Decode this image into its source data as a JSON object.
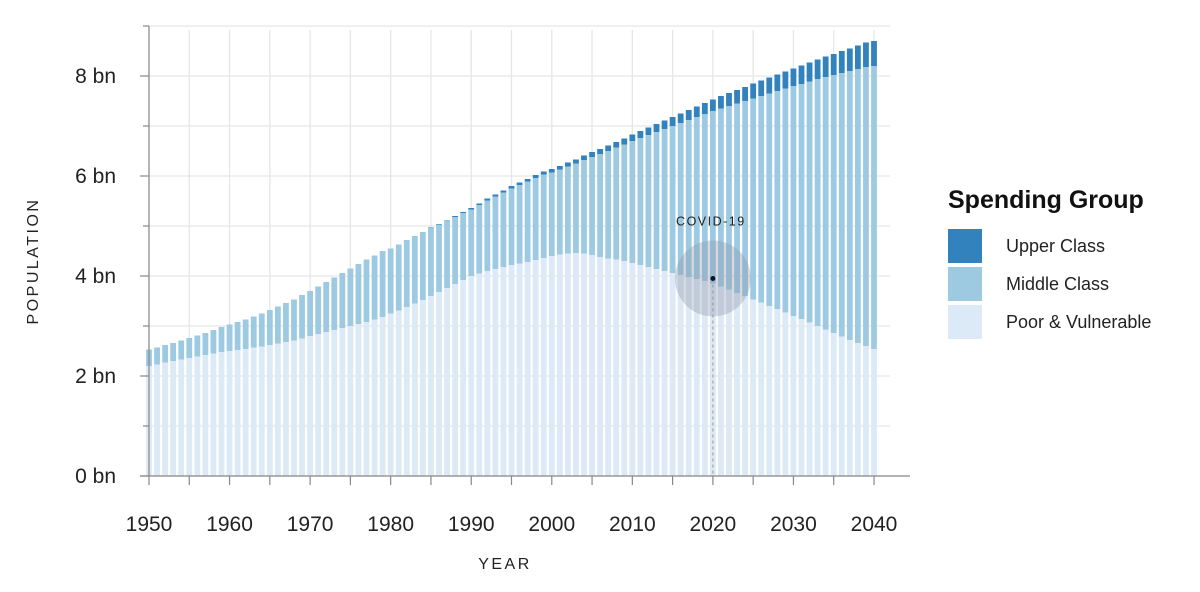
{
  "chart_data": {
    "type": "bar",
    "stacked": true,
    "xlabel": "YEAR",
    "ylabel": "POPULATION",
    "xlim": [
      1950,
      2040
    ],
    "ylim": [
      0,
      9
    ],
    "x_ticks": [
      "1950",
      "1960",
      "1970",
      "1980",
      "1990",
      "2000",
      "2010",
      "2020",
      "2030",
      "2040"
    ],
    "y_ticks": [
      "0 bn",
      "2 bn",
      "4 bn",
      "6 bn",
      "8 bn"
    ],
    "grid": true,
    "legend": {
      "title": "Spending Group",
      "placement": "right",
      "entries": [
        "Upper Class",
        "Middle Class",
        "Poor & Vulnerable"
      ]
    },
    "annotation": {
      "label": "COVID-19",
      "x": 2020,
      "y": 3.95
    },
    "categories": [
      1950,
      1951,
      1952,
      1953,
      1954,
      1955,
      1956,
      1957,
      1958,
      1959,
      1960,
      1961,
      1962,
      1963,
      1964,
      1965,
      1966,
      1967,
      1968,
      1969,
      1970,
      1971,
      1972,
      1973,
      1974,
      1975,
      1976,
      1977,
      1978,
      1979,
      1980,
      1981,
      1982,
      1983,
      1984,
      1985,
      1986,
      1987,
      1988,
      1989,
      1990,
      1991,
      1992,
      1993,
      1994,
      1995,
      1996,
      1997,
      1998,
      1999,
      2000,
      2001,
      2002,
      2003,
      2004,
      2005,
      2006,
      2007,
      2008,
      2009,
      2010,
      2011,
      2012,
      2013,
      2014,
      2015,
      2016,
      2017,
      2018,
      2019,
      2020,
      2021,
      2022,
      2023,
      2024,
      2025,
      2026,
      2027,
      2028,
      2029,
      2030,
      2031,
      2032,
      2033,
      2034,
      2035,
      2036,
      2037,
      2038,
      2039,
      2040
    ],
    "series": [
      {
        "name": "Poor & Vulnerable",
        "color": "#dce9f6",
        "values": [
          2.2,
          2.23,
          2.27,
          2.3,
          2.33,
          2.36,
          2.39,
          2.42,
          2.45,
          2.48,
          2.5,
          2.52,
          2.54,
          2.57,
          2.59,
          2.62,
          2.65,
          2.68,
          2.71,
          2.75,
          2.8,
          2.84,
          2.88,
          2.92,
          2.96,
          3.0,
          3.04,
          3.08,
          3.13,
          3.18,
          3.25,
          3.31,
          3.38,
          3.45,
          3.52,
          3.6,
          3.68,
          3.76,
          3.84,
          3.92,
          4.0,
          4.05,
          4.1,
          4.14,
          4.18,
          4.22,
          4.25,
          4.28,
          4.32,
          4.36,
          4.4,
          4.43,
          4.45,
          4.46,
          4.45,
          4.42,
          4.38,
          4.35,
          4.33,
          4.3,
          4.26,
          4.22,
          4.18,
          4.14,
          4.1,
          4.06,
          4.02,
          3.98,
          3.94,
          3.9,
          3.85,
          3.79,
          3.73,
          3.66,
          3.6,
          3.53,
          3.47,
          3.4,
          3.34,
          3.27,
          3.2,
          3.14,
          3.07,
          3.0,
          2.93,
          2.86,
          2.79,
          2.72,
          2.66,
          2.6,
          2.54
        ]
      },
      {
        "name": "Middle Class",
        "color": "#9ecae1",
        "values": [
          0.33,
          0.34,
          0.35,
          0.36,
          0.38,
          0.4,
          0.42,
          0.44,
          0.47,
          0.5,
          0.53,
          0.56,
          0.59,
          0.62,
          0.66,
          0.7,
          0.74,
          0.78,
          0.82,
          0.87,
          0.9,
          0.95,
          1.0,
          1.05,
          1.1,
          1.15,
          1.2,
          1.25,
          1.28,
          1.32,
          1.3,
          1.32,
          1.34,
          1.35,
          1.36,
          1.36,
          1.35,
          1.34,
          1.34,
          1.34,
          1.33,
          1.37,
          1.41,
          1.45,
          1.49,
          1.53,
          1.57,
          1.61,
          1.64,
          1.67,
          1.67,
          1.7,
          1.74,
          1.79,
          1.87,
          1.96,
          2.06,
          2.15,
          2.24,
          2.33,
          2.44,
          2.54,
          2.64,
          2.74,
          2.84,
          2.94,
          3.04,
          3.14,
          3.24,
          3.34,
          3.45,
          3.56,
          3.67,
          3.79,
          3.9,
          4.02,
          4.13,
          4.25,
          4.36,
          4.48,
          4.6,
          4.7,
          4.82,
          4.94,
          5.05,
          5.16,
          5.27,
          5.38,
          5.48,
          5.58,
          5.66
        ]
      },
      {
        "name": "Upper Class",
        "color": "#3182bd",
        "values": [
          0,
          0,
          0,
          0,
          0,
          0,
          0,
          0,
          0,
          0,
          0,
          0,
          0,
          0,
          0,
          0,
          0,
          0,
          0,
          0,
          0,
          0,
          0,
          0,
          0,
          0,
          0,
          0,
          0,
          0,
          0,
          0,
          0,
          0,
          0,
          0.01,
          0.01,
          0.01,
          0.02,
          0.02,
          0.03,
          0.03,
          0.04,
          0.04,
          0.04,
          0.05,
          0.05,
          0.05,
          0.06,
          0.06,
          0.07,
          0.07,
          0.08,
          0.08,
          0.09,
          0.1,
          0.1,
          0.11,
          0.11,
          0.12,
          0.13,
          0.14,
          0.15,
          0.16,
          0.17,
          0.18,
          0.19,
          0.2,
          0.21,
          0.22,
          0.23,
          0.25,
          0.26,
          0.27,
          0.28,
          0.3,
          0.31,
          0.32,
          0.33,
          0.34,
          0.35,
          0.37,
          0.38,
          0.39,
          0.41,
          0.42,
          0.44,
          0.45,
          0.47,
          0.49,
          0.5
        ]
      }
    ]
  }
}
